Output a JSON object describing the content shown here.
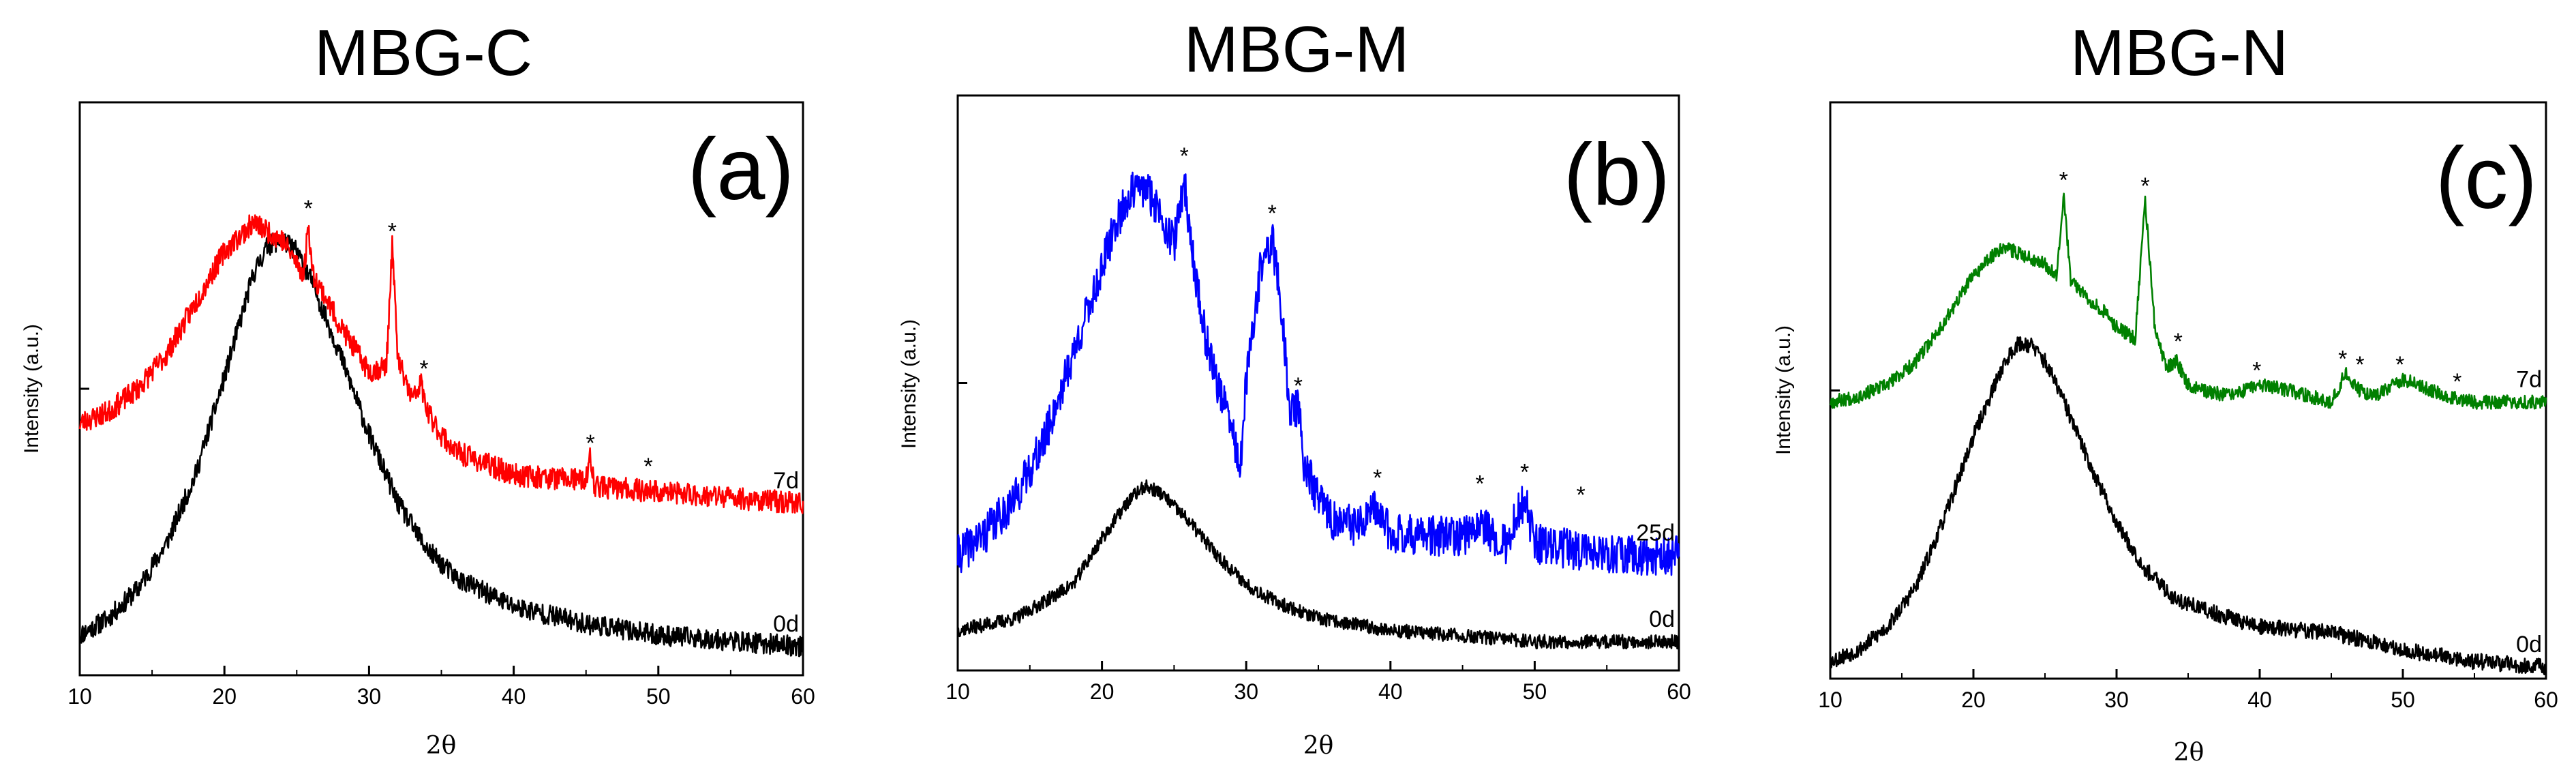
{
  "chart_data": [
    {
      "type": "line",
      "title": "MBG-C",
      "panel_label": "(a)",
      "xlabel": "2θ",
      "ylabel": "Intensity (a.u.)",
      "xlim": [
        10,
        60
      ],
      "xticks": [
        10,
        20,
        30,
        40,
        50,
        60
      ],
      "ylim": [
        0,
        1
      ],
      "series": [
        {
          "name": "0d",
          "color": "#000000",
          "noise": 0.018,
          "seed": 11,
          "x": [
            10,
            12,
            14,
            16,
            18,
            20,
            22,
            23,
            24,
            25,
            26,
            28,
            30,
            32,
            34,
            36,
            40,
            45,
            50,
            55,
            60
          ],
          "y": [
            0.07,
            0.1,
            0.15,
            0.23,
            0.35,
            0.52,
            0.7,
            0.75,
            0.76,
            0.74,
            0.69,
            0.56,
            0.42,
            0.3,
            0.22,
            0.17,
            0.12,
            0.09,
            0.07,
            0.06,
            0.05
          ]
        },
        {
          "name": "7d",
          "color": "#ff0000",
          "noise": 0.02,
          "seed": 23,
          "x": [
            10,
            12,
            14,
            16,
            18,
            20,
            22,
            24,
            25.5,
            25.8,
            26.1,
            27,
            28,
            29,
            30,
            31.2,
            31.6,
            32,
            33,
            33.6,
            34,
            35,
            36,
            38,
            40,
            45,
            45.3,
            45.6,
            50,
            55,
            60
          ],
          "y": [
            0.44,
            0.46,
            0.5,
            0.56,
            0.65,
            0.74,
            0.79,
            0.76,
            0.7,
            0.79,
            0.7,
            0.66,
            0.61,
            0.57,
            0.53,
            0.54,
            0.75,
            0.55,
            0.48,
            0.51,
            0.46,
            0.42,
            0.39,
            0.37,
            0.35,
            0.34,
            0.38,
            0.33,
            0.32,
            0.31,
            0.3
          ]
        }
      ],
      "annotations": [
        {
          "text": "*",
          "x": 25.8,
          "y": 0.83
        },
        {
          "text": "*",
          "x": 31.6,
          "y": 0.79
        },
        {
          "text": "*",
          "x": 33.8,
          "y": 0.55
        },
        {
          "text": "*",
          "x": 45.3,
          "y": 0.42
        },
        {
          "text": "*",
          "x": 49.3,
          "y": 0.38
        }
      ]
    },
    {
      "type": "line",
      "title": "MBG-M",
      "panel_label": "(b)",
      "xlabel": "2θ",
      "ylabel": "Intensity (a.u.)",
      "xlim": [
        10,
        60
      ],
      "xticks": [
        10,
        20,
        30,
        40,
        50,
        60
      ],
      "ylim": [
        0,
        1
      ],
      "series": [
        {
          "name": "0d",
          "color": "#000000",
          "noise": 0.012,
          "seed": 37,
          "x": [
            10,
            14,
            18,
            20,
            22,
            23,
            24,
            26,
            28,
            30,
            32,
            35,
            40,
            45,
            50,
            55,
            60
          ],
          "y": [
            0.07,
            0.09,
            0.15,
            0.23,
            0.3,
            0.32,
            0.31,
            0.26,
            0.2,
            0.15,
            0.12,
            0.09,
            0.07,
            0.06,
            0.05,
            0.05,
            0.05
          ]
        },
        {
          "name": "25d",
          "color": "#0000ff",
          "noise": 0.035,
          "seed": 41,
          "x": [
            10,
            12,
            14,
            16,
            18,
            20,
            21,
            22,
            23,
            24,
            25,
            25.7,
            26.3,
            27,
            28,
            29,
            29.6,
            30,
            31,
            31.8,
            32.5,
            33,
            33.6,
            34,
            35,
            36,
            38,
            39,
            40,
            45,
            46,
            48,
            49.3,
            50,
            53,
            55,
            60
          ],
          "y": [
            0.2,
            0.24,
            0.3,
            0.4,
            0.55,
            0.7,
            0.78,
            0.83,
            0.84,
            0.8,
            0.74,
            0.85,
            0.72,
            0.6,
            0.5,
            0.42,
            0.35,
            0.5,
            0.7,
            0.75,
            0.62,
            0.45,
            0.46,
            0.36,
            0.3,
            0.26,
            0.25,
            0.28,
            0.24,
            0.23,
            0.26,
            0.22,
            0.3,
            0.22,
            0.21,
            0.2,
            0.2
          ]
        }
      ],
      "annotations": [
        {
          "text": "*",
          "x": 25.7,
          "y": 0.91
        },
        {
          "text": "*",
          "x": 31.8,
          "y": 0.81
        },
        {
          "text": "*",
          "x": 33.6,
          "y": 0.51
        },
        {
          "text": "*",
          "x": 39.1,
          "y": 0.35
        },
        {
          "text": "*",
          "x": 46.2,
          "y": 0.34
        },
        {
          "text": "*",
          "x": 49.3,
          "y": 0.36
        },
        {
          "text": "*",
          "x": 53.2,
          "y": 0.32
        }
      ]
    },
    {
      "type": "line",
      "title": "MBG-N",
      "panel_label": "(c)",
      "xlabel": "2θ",
      "ylabel": "Intensity (a.u.)",
      "xlim": [
        10,
        60
      ],
      "xticks": [
        10,
        20,
        30,
        40,
        50,
        60
      ],
      "ylim": [
        0,
        1
      ],
      "series": [
        {
          "name": "0d",
          "color": "#000000",
          "noise": 0.014,
          "seed": 53,
          "x": [
            10,
            12,
            14,
            16,
            18,
            20,
            22,
            23,
            24,
            25,
            26,
            28,
            30,
            32,
            34,
            36,
            40,
            45,
            50,
            55,
            60
          ],
          "y": [
            0.03,
            0.05,
            0.09,
            0.16,
            0.28,
            0.42,
            0.54,
            0.58,
            0.58,
            0.55,
            0.5,
            0.38,
            0.27,
            0.19,
            0.14,
            0.12,
            0.09,
            0.08,
            0.05,
            0.03,
            0.02
          ]
        },
        {
          "name": "7d",
          "color": "#008000",
          "noise": 0.012,
          "seed": 67,
          "x": [
            10,
            12,
            14,
            16,
            18,
            20,
            22,
            24,
            25,
            25.8,
            26.3,
            26.8,
            28,
            29,
            30,
            31.3,
            32,
            32.7,
            33.5,
            34.2,
            35,
            36,
            38,
            40,
            42,
            45,
            46,
            47,
            48,
            50,
            53,
            55,
            60
          ],
          "y": [
            0.48,
            0.49,
            0.51,
            0.55,
            0.62,
            0.7,
            0.75,
            0.73,
            0.72,
            0.7,
            0.84,
            0.69,
            0.66,
            0.64,
            0.61,
            0.59,
            0.83,
            0.6,
            0.54,
            0.55,
            0.51,
            0.5,
            0.49,
            0.51,
            0.5,
            0.48,
            0.53,
            0.5,
            0.49,
            0.52,
            0.49,
            0.48,
            0.48
          ]
        }
      ],
      "annotations": [
        {
          "text": "*",
          "x": 26.3,
          "y": 0.88
        },
        {
          "text": "*",
          "x": 32.0,
          "y": 0.87
        },
        {
          "text": "*",
          "x": 34.3,
          "y": 0.6
        },
        {
          "text": "*",
          "x": 39.8,
          "y": 0.55
        },
        {
          "text": "*",
          "x": 45.8,
          "y": 0.57
        },
        {
          "text": "*",
          "x": 47.0,
          "y": 0.56
        },
        {
          "text": "*",
          "x": 49.8,
          "y": 0.56
        },
        {
          "text": "*",
          "x": 53.8,
          "y": 0.53
        }
      ]
    }
  ]
}
